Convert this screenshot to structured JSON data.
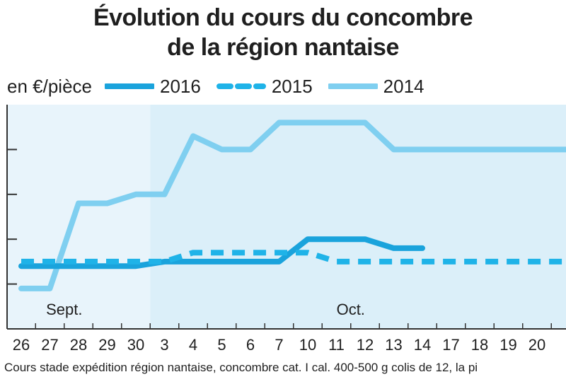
{
  "title_line1": "Évolution du cours du concombre",
  "title_line2": "de la région nantaise",
  "unit_label": "en €/pièce",
  "footnote": "Cours stade expédition région nantaise, concombre cat. I cal. 400-500 g colis de 12, la pi",
  "chart_data": {
    "type": "line",
    "title": "Évolution du cours du concombre de la région nantaise",
    "ylabel": "en €/pièce",
    "categories": [
      "26",
      "27",
      "28",
      "29",
      "30",
      "3",
      "4",
      "5",
      "6",
      "7",
      "10",
      "11",
      "12",
      "13",
      "14",
      "17",
      "18",
      "19",
      "20"
    ],
    "month_labels": [
      {
        "label": "Sept.",
        "at_index": 1.5
      },
      {
        "label": "Oct.",
        "at_index": 11.5
      }
    ],
    "ylim": [
      0,
      5
    ],
    "yticks": [
      1,
      2,
      3,
      4
    ],
    "y_units_note": "y axis tick values not printed; values in gridline units",
    "grid": "horizontal ticks on left axis only",
    "legend_position": "top",
    "series": [
      {
        "name": "2016",
        "style": "solid",
        "color": "#1aa3dc",
        "values": [
          1.4,
          1.4,
          1.4,
          1.4,
          1.4,
          1.5,
          1.5,
          1.5,
          1.5,
          1.5,
          2.0,
          2.0,
          2.0,
          1.8,
          1.8,
          null,
          null,
          null,
          null
        ]
      },
      {
        "name": "2015",
        "style": "dashed",
        "color": "#1fb3e8",
        "values": [
          1.5,
          1.5,
          1.5,
          1.5,
          1.5,
          1.5,
          1.7,
          1.7,
          1.7,
          1.7,
          1.7,
          1.5,
          1.5,
          1.5,
          1.5,
          1.5,
          1.5,
          1.5,
          1.5
        ]
      },
      {
        "name": "2014",
        "style": "solid",
        "color": "#7fcff0",
        "values": [
          0.9,
          0.9,
          2.8,
          2.8,
          3.0,
          3.0,
          4.3,
          4.0,
          4.0,
          4.6,
          4.6,
          4.6,
          4.6,
          4.0,
          4.0,
          4.0,
          4.0,
          4.0,
          4.0
        ]
      }
    ]
  },
  "colors": {
    "bg_left": "#e8f4fb",
    "bg_right": "#dbeff9",
    "axis": "#333333"
  }
}
